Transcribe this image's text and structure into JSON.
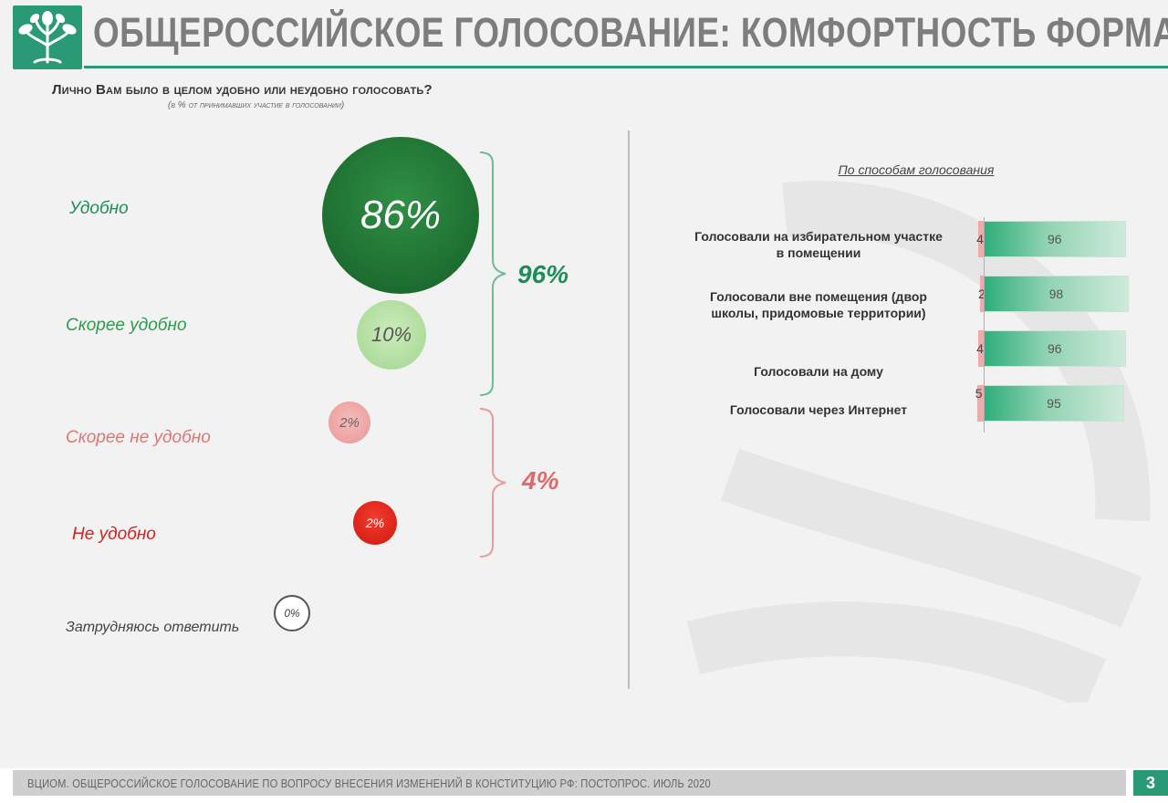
{
  "header": {
    "title": "ОБЩЕРОССИЙСКОЕ ГОЛОСОВАНИЕ: КОМФОРТНОСТЬ ФОРМАТА",
    "logo": "tree-logo"
  },
  "question": "Лично Вам было в целом удобно или неудобно голосовать?",
  "subnote": "(в % от принимавших участие в голосовании)",
  "chart_data": [
    {
      "type": "bubble",
      "categories": [
        "Удобно",
        "Скорее удобно",
        "Скорее не удобно",
        "Не удобно",
        "Затрудняюсь ответить"
      ],
      "values": [
        86,
        10,
        2,
        2,
        0
      ],
      "value_labels": [
        "86%",
        "10%",
        "2%",
        "2%",
        "0%"
      ],
      "colors": [
        "#237a37",
        "#b9e2a5",
        "#f2a8a8",
        "#e62418",
        "#ffffff"
      ],
      "label_colors": [
        "#1f8c5a",
        "#2f9a4e",
        "#e07575",
        "#d42020",
        "#444444"
      ],
      "groups": [
        {
          "label": "96%",
          "value": 96,
          "members": [
            "Удобно",
            "Скорее удобно"
          ],
          "color": "#1f8c5a"
        },
        {
          "label": "4%",
          "value": 4,
          "members": [
            "Скорее не удобно",
            "Не удобно"
          ],
          "color": "#e06a6a"
        }
      ]
    },
    {
      "type": "bar",
      "stacked": true,
      "orientation": "horizontal",
      "title": "По способам голосования",
      "categories": [
        "Голосовали на избирательном участке в помещении",
        "Голосовали вне помещения (двор школы, придомовые территории)",
        "Голосовали на дому",
        "Голосовали через Интернет"
      ],
      "series": [
        {
          "values": [
            4,
            2,
            4,
            5
          ],
          "color": "#f2a9a9"
        },
        {
          "values": [
            96,
            98,
            96,
            95
          ],
          "color": "#2fae7a"
        }
      ],
      "xlim": [
        0,
        100
      ]
    }
  ],
  "right_panel": {
    "title": "По способам голосования",
    "methods": [
      "Голосовали на избирательном участке в помещении",
      "Голосовали вне помещения (двор школы, придомовые территории)",
      "Голосовали на дому",
      "Голосовали через Интернет"
    ]
  },
  "footer": {
    "source": "ВЦИОМ. ОБЩЕРОССИЙСКОЕ ГОЛОСОВАНИЕ ПО ВОПРОСУ ВНЕСЕНИЯ ИЗМЕНЕНИЙ В КОНСТИТУЦИЮ РФ: ПОСТОПРОС. ИЮЛЬ 2020",
    "page": "3"
  },
  "colors": {
    "brand": "#2a9a76",
    "header_text": "#7d7d7d"
  }
}
